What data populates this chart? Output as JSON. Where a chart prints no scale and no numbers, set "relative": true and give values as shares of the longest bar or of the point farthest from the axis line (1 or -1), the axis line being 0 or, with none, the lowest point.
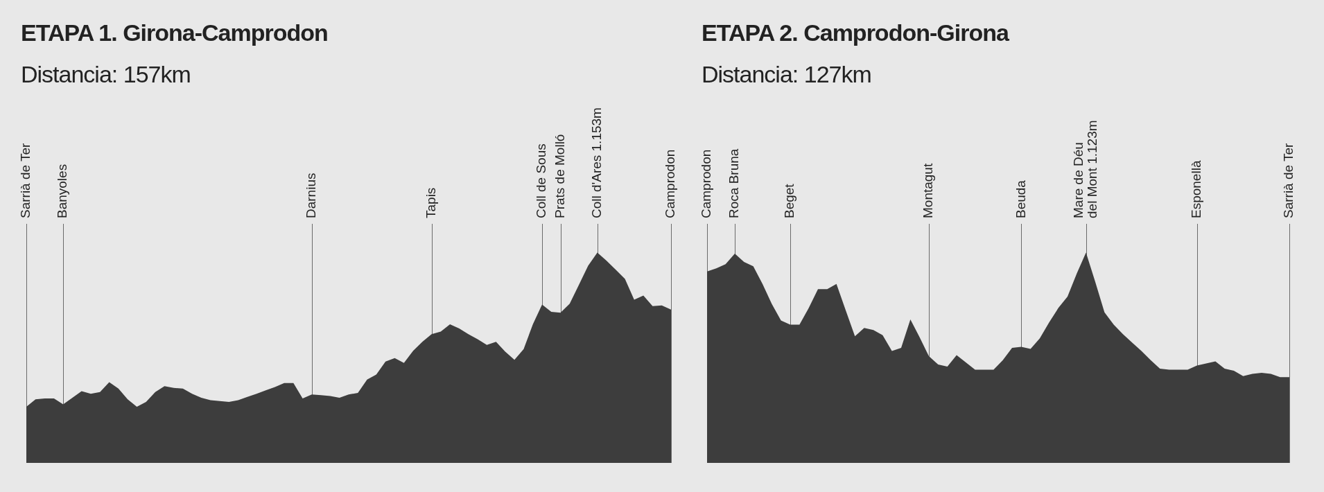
{
  "chart_data": [
    {
      "type": "area",
      "title": "ETAPA 1. Girona-Camprodon",
      "subtitle": "Distancia: 157km",
      "relative": true,
      "grid": "x",
      "color": "#3d3d3d",
      "categories": [
        "Sarrià de Ter",
        null,
        null,
        null,
        "Banyoles",
        null,
        null,
        null,
        null,
        null,
        null,
        null,
        null,
        null,
        null,
        null,
        null,
        null,
        null,
        null,
        null,
        null,
        null,
        null,
        null,
        null,
        null,
        null,
        null,
        null,
        null,
        "Darnius",
        null,
        null,
        null,
        null,
        null,
        null,
        null,
        null,
        null,
        null,
        null,
        null,
        "Tapis",
        null,
        null,
        null,
        null,
        null,
        null,
        null,
        null,
        null,
        null,
        null,
        "Coll de Sous",
        null,
        "Prats de Molló",
        null,
        null,
        null,
        "Coll d'Ares 1.153m",
        null,
        null,
        null,
        null,
        null,
        null,
        null,
        "Camprodon"
      ],
      "values": [
        0.267,
        0.302,
        0.306,
        0.306,
        0.278,
        0.31,
        0.341,
        0.329,
        0.337,
        0.384,
        0.353,
        0.302,
        0.267,
        0.29,
        0.337,
        0.365,
        0.357,
        0.353,
        0.329,
        0.31,
        0.298,
        0.294,
        0.29,
        0.298,
        0.314,
        0.329,
        0.345,
        0.361,
        0.38,
        0.38,
        0.306,
        0.325,
        0.322,
        0.318,
        0.31,
        0.325,
        0.333,
        0.396,
        0.42,
        0.482,
        0.498,
        0.475,
        0.533,
        0.576,
        0.612,
        0.624,
        0.659,
        0.639,
        0.612,
        0.588,
        0.561,
        0.576,
        0.529,
        0.49,
        0.541,
        0.659,
        0.753,
        0.718,
        0.714,
        0.757,
        0.847,
        0.937,
        1,
        0.961,
        0.918,
        0.875,
        0.776,
        0.796,
        0.745,
        0.749,
        0.729
      ]
    },
    {
      "type": "area",
      "title": "ETAPA 2. Camprodon-Girona",
      "subtitle": "Distancia: 127km",
      "relative": true,
      "grid": "x",
      "color": "#3d3d3d",
      "categories": [
        "Camprodon",
        null,
        null,
        "Roca Bruna",
        null,
        null,
        null,
        null,
        null,
        "Beget",
        null,
        null,
        null,
        null,
        null,
        null,
        null,
        null,
        null,
        null,
        null,
        null,
        null,
        null,
        "Montagut",
        null,
        null,
        null,
        null,
        null,
        null,
        null,
        null,
        null,
        "Beuda",
        null,
        null,
        null,
        null,
        null,
        null,
        "Mare de Déu del Mont 1.123m",
        null,
        null,
        null,
        null,
        null,
        null,
        null,
        null,
        null,
        null,
        null,
        "Esponellà",
        null,
        null,
        null,
        null,
        null,
        null,
        null,
        null,
        null,
        "Sarrià de Ter"
      ],
      "values": [
        0.91,
        0.925,
        0.945,
        0.995,
        0.955,
        0.935,
        0.851,
        0.756,
        0.677,
        0.657,
        0.657,
        0.736,
        0.826,
        0.826,
        0.851,
        0.726,
        0.602,
        0.642,
        0.632,
        0.607,
        0.532,
        0.547,
        0.682,
        0.597,
        0.507,
        0.468,
        0.458,
        0.512,
        0.478,
        0.443,
        0.443,
        0.443,
        0.488,
        0.547,
        0.552,
        0.542,
        0.592,
        0.667,
        0.736,
        0.791,
        0.9,
        1,
        0.861,
        0.716,
        0.657,
        0.612,
        0.572,
        0.532,
        0.488,
        0.448,
        0.443,
        0.443,
        0.443,
        0.463,
        0.473,
        0.483,
        0.448,
        0.438,
        0.413,
        0.423,
        0.428,
        0.423,
        0.408,
        0.408
      ]
    }
  ]
}
